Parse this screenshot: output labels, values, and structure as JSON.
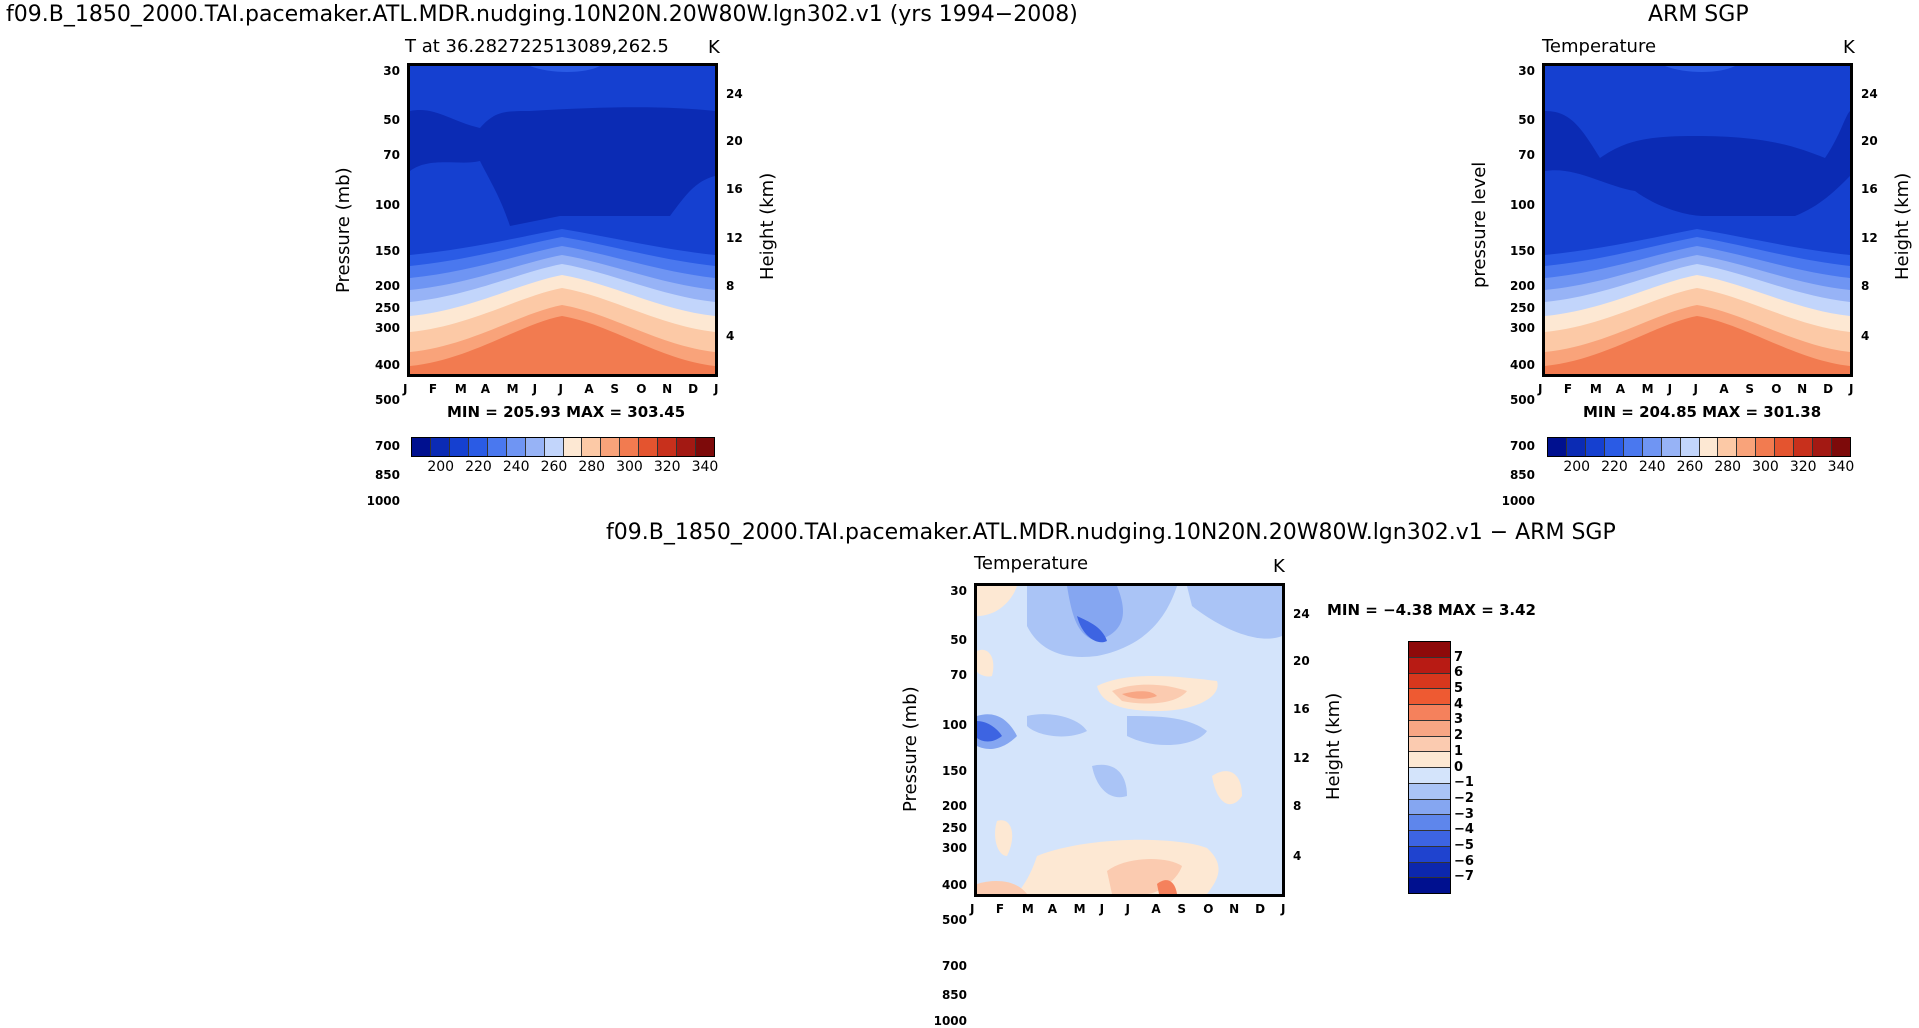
{
  "chart_data": [
    {
      "type": "contour",
      "id": "model",
      "title": "f09.B_1850_2000.TAI.pacemaker.ATL.MDR.nudging.10N20N.20W80W.lgn302.v1  (yrs 1994−2008)",
      "subtitle_left": "T  at  36.282722513089,262.5",
      "units": "K",
      "ylabel_left": "Pressure  (mb)",
      "ylabel_right": "Height  (km)",
      "x_ticks": [
        "J",
        "F",
        "M",
        "A",
        "M",
        "J",
        "J",
        "A",
        "S",
        "O",
        "N",
        "D",
        "J"
      ],
      "y_ticks_pressure": [
        "30",
        "50",
        "70",
        "100",
        "150",
        "200",
        "250",
        "300",
        "400",
        "500",
        "700",
        "850",
        "1000"
      ],
      "y_ticks_height": [
        "24",
        "20",
        "16",
        "12",
        "8",
        "4"
      ],
      "min_max": "MIN = 205.93  MAX = 303.45",
      "min": 205.93,
      "max": 303.45
    },
    {
      "type": "contour",
      "id": "obs",
      "title": "ARM  SGP",
      "subtitle_left": "Temperature",
      "units": "K",
      "ylabel_left": "pressure  level",
      "ylabel_right": "Height  (km)",
      "x_ticks": [
        "J",
        "F",
        "M",
        "A",
        "M",
        "J",
        "J",
        "A",
        "S",
        "O",
        "N",
        "D",
        "J"
      ],
      "y_ticks_pressure": [
        "30",
        "50",
        "70",
        "100",
        "150",
        "200",
        "250",
        "300",
        "400",
        "500",
        "700",
        "850",
        "1000"
      ],
      "y_ticks_height": [
        "24",
        "20",
        "16",
        "12",
        "8",
        "4"
      ],
      "min_max": "MIN = 204.85  MAX = 301.38",
      "min": 204.85,
      "max": 301.38
    },
    {
      "type": "contour",
      "id": "diff",
      "title": "f09.B_1850_2000.TAI.pacemaker.ATL.MDR.nudging.10N20N.20W80W.lgn302.v1  −  ARM  SGP",
      "subtitle_left": "Temperature",
      "units": "K",
      "ylabel_left": "Pressure  (mb)",
      "ylabel_right": "Height  (km)",
      "x_ticks": [
        "J",
        "F",
        "M",
        "A",
        "M",
        "J",
        "J",
        "A",
        "S",
        "O",
        "N",
        "D",
        "J"
      ],
      "y_ticks_pressure": [
        "30",
        "50",
        "70",
        "100",
        "150",
        "200",
        "250",
        "300",
        "400",
        "500",
        "700",
        "850",
        "1000"
      ],
      "y_ticks_height": [
        "24",
        "20",
        "16",
        "12",
        "8",
        "4"
      ],
      "min_max": "MIN =   −4.38  MAX =     3.42",
      "min": -4.38,
      "max": 3.42
    }
  ],
  "colorbar_temp": {
    "labels": [
      "200",
      "220",
      "240",
      "260",
      "280",
      "300",
      "320",
      "340"
    ],
    "colors": [
      "#00108f",
      "#0b2bb4",
      "#1540d0",
      "#2a5be5",
      "#4a78ef",
      "#6f95f3",
      "#97b3f6",
      "#c2d5fb",
      "#fde8d3",
      "#fcc9a6",
      "#f9a37a",
      "#f27b50",
      "#e4542f",
      "#c8301c",
      "#a31913",
      "#7d0a0a"
    ]
  },
  "colorbar_diff": {
    "labels": [
      "7",
      "6",
      "5",
      "4",
      "3",
      "2",
      "1",
      "0",
      "−1",
      "−2",
      "−3",
      "−4",
      "−5",
      "−6",
      "−7"
    ],
    "colors": [
      "#8e0a0a",
      "#b81b14",
      "#d8371d",
      "#ee5a32",
      "#f5815c",
      "#f8a684",
      "#fbcbb0",
      "#fde8d3",
      "#d4e4fb",
      "#aac4f6",
      "#85a6f1",
      "#5e86ec",
      "#3d64e2",
      "#1f43cf",
      "#0c27ad",
      "#00108f"
    ]
  }
}
